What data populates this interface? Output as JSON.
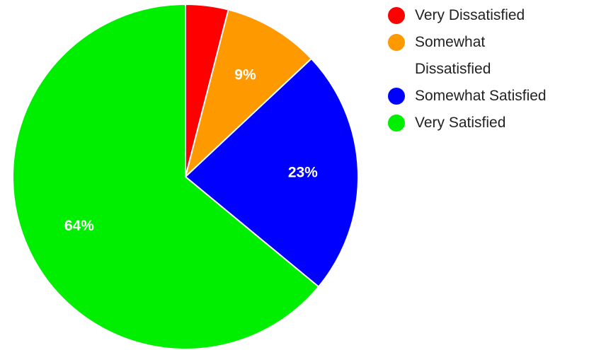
{
  "chart_data": {
    "type": "pie",
    "start_angle_deg": 0,
    "direction": "clockwise",
    "slices": [
      {
        "name": "Very Dissatisfied",
        "value": 4,
        "color": "#ff0000",
        "label": ""
      },
      {
        "name": "Somewhat Dissatisfied",
        "value": 9,
        "color": "#ff9900",
        "label": "9%"
      },
      {
        "name": "Somewhat Satisfied",
        "value": 23,
        "color": "#0000ff",
        "label": "23%"
      },
      {
        "name": "Very Satisfied",
        "value": 64,
        "color": "#00ee00",
        "label": "64%"
      }
    ],
    "legend_position": "right",
    "legend": [
      {
        "label": "Very Dissatisfied",
        "color": "#ff0000"
      },
      {
        "label": "Somewhat Dissatisfied",
        "color": "#ff9900"
      },
      {
        "label": "Somewhat Satisfied",
        "color": "#0000ff"
      },
      {
        "label": "Very Satisfied",
        "color": "#00ee00"
      }
    ]
  }
}
